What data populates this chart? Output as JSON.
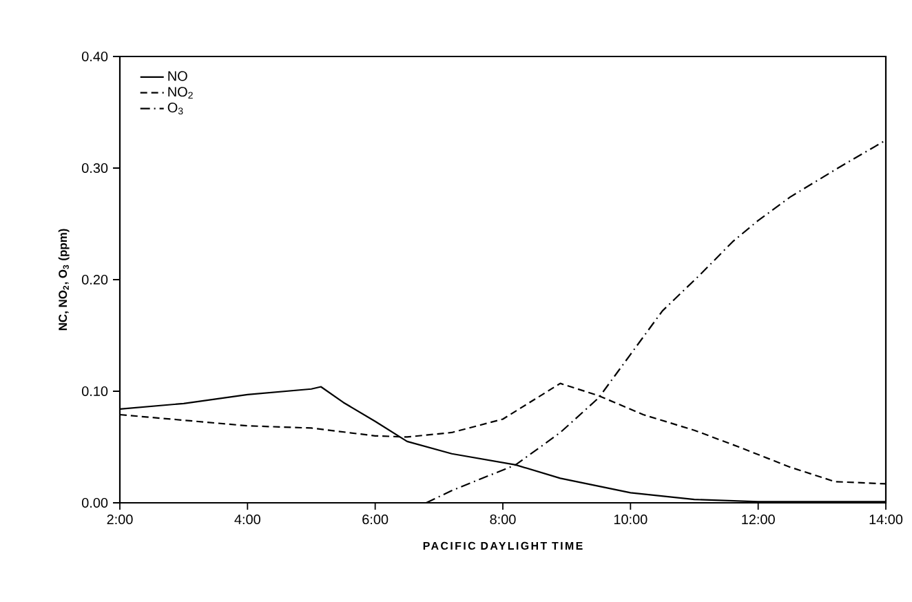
{
  "chart_data": {
    "type": "line",
    "xlabel": "PACIFIC DAYLIGHT TIME",
    "ylabel": "NC, NO$_{2}$, O$_{3}$  (ppm)",
    "xlim": [
      2,
      14
    ],
    "ylim": [
      0,
      0.4
    ],
    "xticks": [
      {
        "value": 2,
        "label": "2:00"
      },
      {
        "value": 4,
        "label": "4:00"
      },
      {
        "value": 6,
        "label": "6:00"
      },
      {
        "value": 8,
        "label": "8:00"
      },
      {
        "value": 10,
        "label": "10:00"
      },
      {
        "value": 12,
        "label": "12:00"
      },
      {
        "value": 14,
        "label": "14:00"
      }
    ],
    "yticks": [
      {
        "value": 0,
        "label": "0.00"
      },
      {
        "value": 0.1,
        "label": "0.10"
      },
      {
        "value": 0.2,
        "label": "0.20"
      },
      {
        "value": 0.3,
        "label": "0.30"
      },
      {
        "value": 0.4,
        "label": "0.40"
      }
    ],
    "grid": false,
    "legend": "top left",
    "marker": "none",
    "series": [
      {
        "name": "NO",
        "color": "#000000",
        "line_style": "solid",
        "x": [
          2,
          3,
          4,
          5,
          5.15,
          5.5,
          6,
          6.5,
          7.2,
          8.2,
          8.9,
          10,
          11,
          12,
          14
        ],
        "values": [
          0.084,
          0.089,
          0.097,
          0.102,
          0.104,
          0.09,
          0.073,
          0.055,
          0.044,
          0.034,
          0.022,
          0.009,
          0.003,
          0.001,
          0.001
        ]
      },
      {
        "name": "NO$_{2}$",
        "color": "#000000",
        "line_style": "dashed",
        "x": [
          2,
          4,
          5,
          6,
          6.5,
          7.2,
          8,
          8.9,
          9.5,
          10.2,
          11,
          11.7,
          12.5,
          13.2,
          14
        ],
        "values": [
          0.079,
          0.069,
          0.067,
          0.06,
          0.059,
          0.063,
          0.075,
          0.107,
          0.096,
          0.079,
          0.065,
          0.05,
          0.032,
          0.019,
          0.017
        ]
      },
      {
        "name": "O$_{3}$",
        "color": "#000000",
        "line_style": "dashdot",
        "x": [
          6.8,
          7.2,
          8.2,
          8.9,
          9.5,
          10,
          10.5,
          11.1,
          11.6,
          12,
          12.5,
          13.25,
          14
        ],
        "values": [
          0,
          0.011,
          0.034,
          0.063,
          0.094,
          0.133,
          0.172,
          0.205,
          0.234,
          0.253,
          0.274,
          0.3,
          0.325
        ]
      }
    ]
  }
}
